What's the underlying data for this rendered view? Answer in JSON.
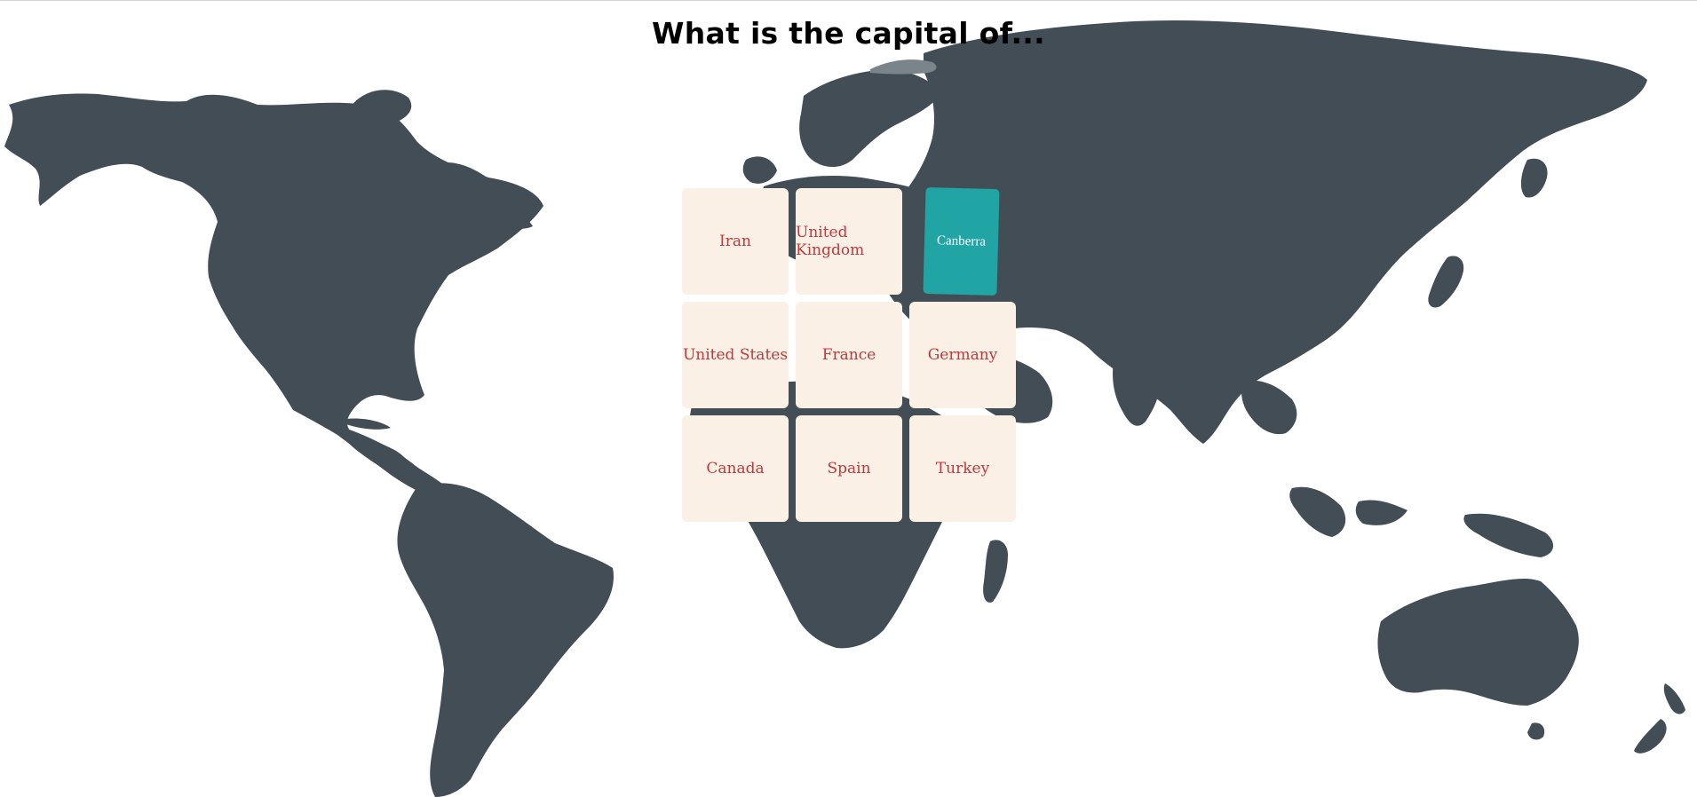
{
  "game": {
    "title": "What is the capital of...",
    "capital_card": "Canberra",
    "country_cards": [
      "Iran",
      "United Kingdom",
      "United States",
      "France",
      "Germany",
      "Canada",
      "Spain",
      "Turkey"
    ]
  },
  "colors": {
    "land": "#424d55",
    "card_background": "#faf0e6",
    "card_text": "#c0393b",
    "capital_card": "#20a4a4"
  }
}
